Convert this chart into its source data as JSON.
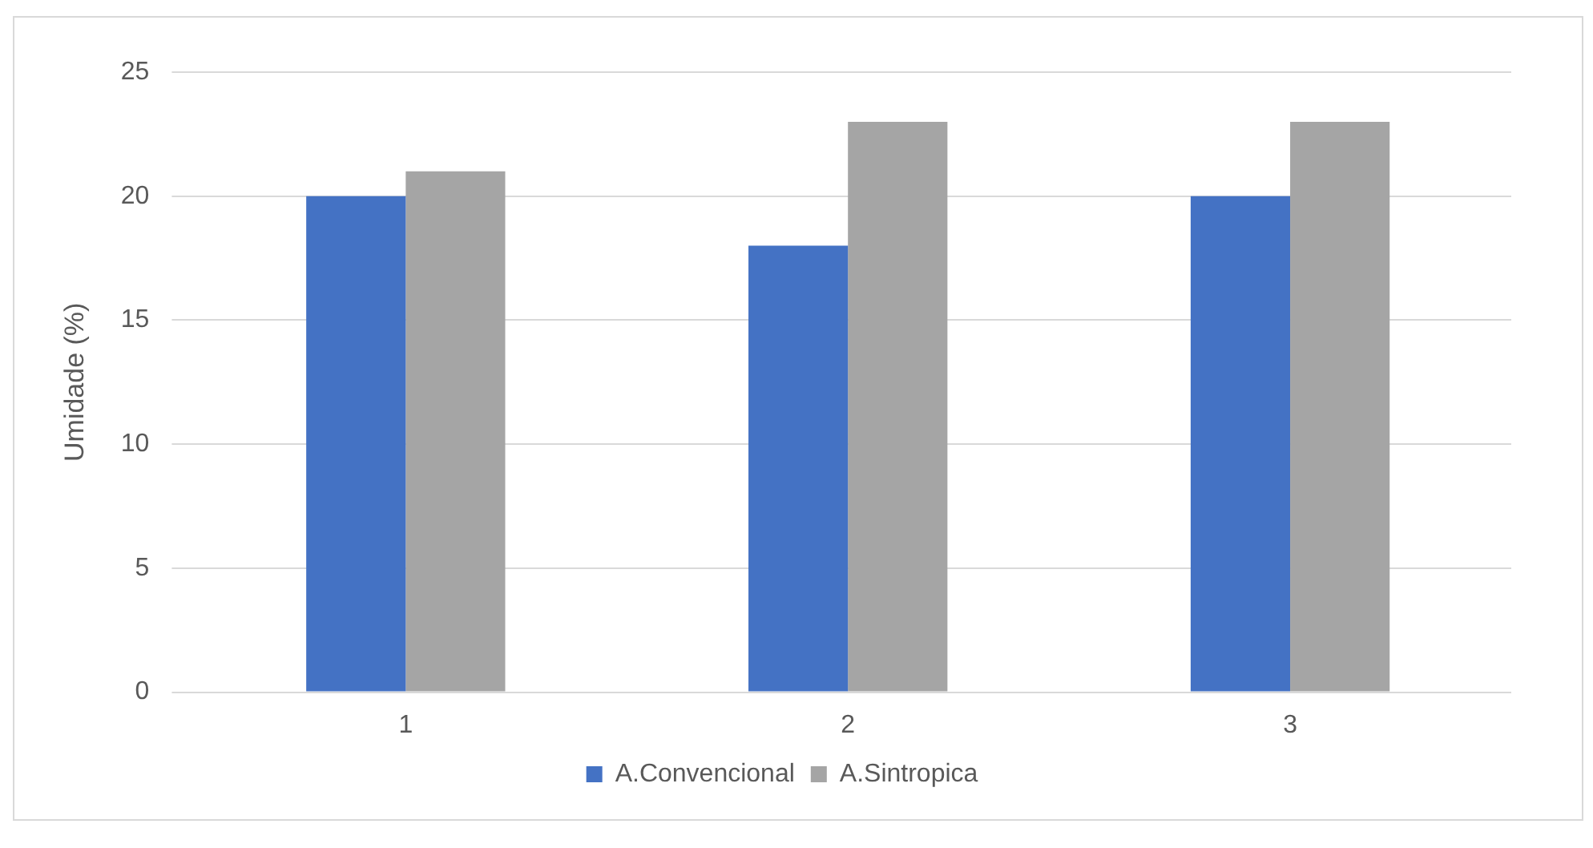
{
  "chart_data": {
    "type": "bar",
    "ylabel": "Umidade (%)",
    "categories": [
      "1",
      "2",
      "3"
    ],
    "series": [
      {
        "name": "A.Convencional",
        "color": "#4472c4",
        "values": [
          20,
          18,
          20
        ]
      },
      {
        "name": "A.Sintropica",
        "color": "#a5a5a5",
        "values": [
          21,
          23,
          23
        ]
      }
    ],
    "ylim": [
      0,
      25
    ],
    "yticks": [
      0,
      5,
      10,
      15,
      20,
      25
    ],
    "grid": "y",
    "legend": "bottom"
  }
}
